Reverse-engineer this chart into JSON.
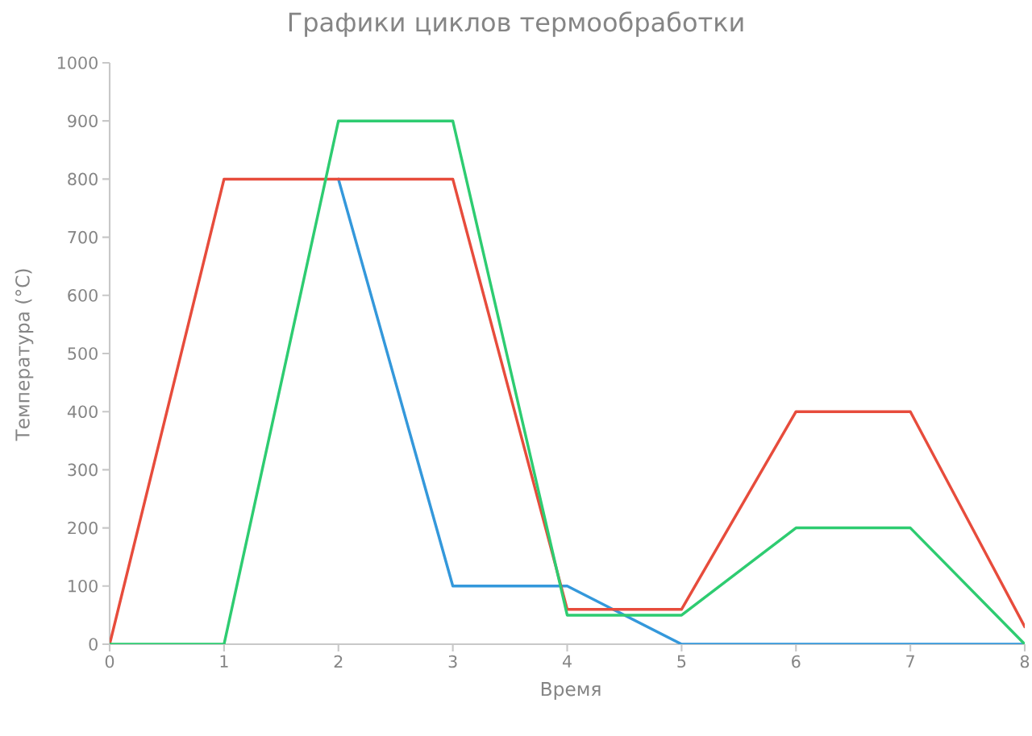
{
  "chart_data": {
    "type": "line",
    "title": "Графики циклов термообработки",
    "xlabel": "Время",
    "ylabel": "Температура (°C)",
    "x": [
      0,
      1,
      2,
      3,
      4,
      5,
      6,
      7,
      8
    ],
    "series": [
      {
        "color": "#3498db",
        "values": [
          null,
          null,
          800,
          100,
          100,
          0,
          0,
          0,
          0
        ]
      },
      {
        "color": "#e74c3c",
        "values": [
          0,
          800,
          800,
          800,
          60,
          60,
          400,
          400,
          30
        ]
      },
      {
        "color": "#2ecc71",
        "values": [
          0,
          0,
          900,
          900,
          50,
          50,
          200,
          200,
          0
        ]
      }
    ],
    "xlim": [
      0,
      8
    ],
    "ylim": [
      0,
      1000
    ],
    "xticks": [
      0,
      1,
      2,
      3,
      4,
      5,
      6,
      7,
      8
    ],
    "yticks": [
      0,
      100,
      200,
      300,
      400,
      500,
      600,
      700,
      800,
      900,
      1000
    ],
    "marker": "none",
    "line_style": "solid"
  }
}
